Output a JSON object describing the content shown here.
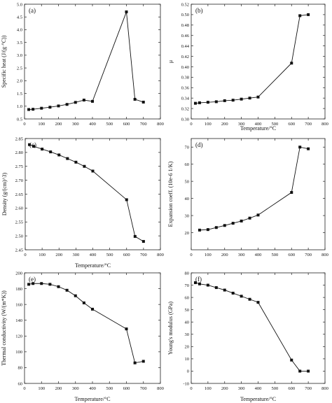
{
  "chart_data": [
    {
      "type": "line",
      "panel_label": "(a)",
      "xlabel": "",
      "ylabel": "Specific heat (J/(g·°C))",
      "xlim": [
        0,
        800
      ],
      "ylim": [
        0.5,
        5.0
      ],
      "xticks": [
        "0",
        "100",
        "200",
        "300",
        "400",
        "500",
        "600",
        "700",
        "800"
      ],
      "yticks": [
        "0.5",
        "1.0",
        "1.5",
        "2.0",
        "2.5",
        "3.0",
        "3.5",
        "4.0",
        "4.5",
        "5.0"
      ],
      "series": [
        {
          "x": [
            25,
            50,
            100,
            150,
            200,
            250,
            300,
            350,
            400,
            600,
            650,
            700
          ],
          "y": [
            0.87,
            0.88,
            0.92,
            0.96,
            1.01,
            1.07,
            1.15,
            1.24,
            1.19,
            4.7,
            1.27,
            1.16
          ]
        }
      ]
    },
    {
      "type": "line",
      "panel_label": "(b)",
      "xlabel": "Temperature/°C",
      "ylabel": "μ",
      "xlim": [
        0,
        800
      ],
      "ylim": [
        0.3,
        0.52
      ],
      "xticks": [
        "0",
        "100",
        "200",
        "300",
        "400",
        "500",
        "600",
        "700",
        "800"
      ],
      "yticks": [
        "0.30",
        "0.32",
        "0.34",
        "0.36",
        "0.38",
        "0.40",
        "0.42",
        "0.44",
        "0.46",
        "0.48",
        "0.50",
        "0.52"
      ],
      "series": [
        {
          "x": [
            25,
            50,
            100,
            150,
            200,
            250,
            300,
            350,
            400,
            600,
            650,
            700
          ],
          "y": [
            0.33,
            0.331,
            0.332,
            0.333,
            0.335,
            0.336,
            0.338,
            0.34,
            0.342,
            0.407,
            0.498,
            0.5
          ]
        }
      ]
    },
    {
      "type": "line",
      "panel_label": "(c)",
      "xlabel": "Temperature/°C",
      "ylabel": "Density (g/(cm)^3)",
      "xlim": [
        0,
        800
      ],
      "ylim": [
        2.45,
        2.85
      ],
      "xticks": [
        "0",
        "100",
        "200",
        "300",
        "400",
        "500",
        "600",
        "700",
        "800"
      ],
      "yticks": [
        "2.45",
        "2.50",
        "2.55",
        "2.60",
        "2.65",
        "2.70",
        "2.75",
        "2.80",
        "2.85"
      ],
      "series": [
        {
          "x": [
            25,
            50,
            100,
            150,
            200,
            250,
            300,
            350,
            400,
            600,
            650,
            700
          ],
          "y": [
            2.828,
            2.822,
            2.812,
            2.802,
            2.791,
            2.778,
            2.765,
            2.75,
            2.733,
            2.63,
            2.498,
            2.48
          ]
        }
      ]
    },
    {
      "type": "line",
      "panel_label": "(d)",
      "xlabel": "",
      "ylabel": "Expansion coeff. (10e-6 1/K)",
      "xlim": [
        0,
        800
      ],
      "ylim": [
        10,
        75
      ],
      "xticks": [
        "0",
        "100",
        "200",
        "300",
        "400",
        "500",
        "600",
        "700",
        "800"
      ],
      "yticks": [
        "20",
        "30",
        "40",
        "50",
        "60",
        "70"
      ],
      "series": [
        {
          "x": [
            50,
            100,
            150,
            200,
            250,
            300,
            350,
            400,
            600,
            650,
            700
          ],
          "y": [
            21.5,
            21.8,
            23.0,
            24.2,
            25.5,
            26.8,
            28.5,
            30.3,
            43.5,
            70.0,
            69.0
          ]
        }
      ]
    },
    {
      "type": "line",
      "panel_label": "(e)",
      "xlabel": "Temperature/°C",
      "ylabel": "Thermal conductivity (W/(m*K))",
      "xlim": [
        0,
        800
      ],
      "ylim": [
        60,
        200
      ],
      "xticks": [
        "0",
        "100",
        "200",
        "300",
        "400",
        "500",
        "600",
        "700",
        "800"
      ],
      "yticks": [
        "60",
        "80",
        "100",
        "120",
        "140",
        "160",
        "180",
        "200"
      ],
      "series": [
        {
          "x": [
            25,
            50,
            100,
            150,
            200,
            250,
            300,
            350,
            400,
            600,
            650,
            700
          ],
          "y": [
            185.5,
            186.5,
            186.5,
            185.5,
            182.5,
            178,
            171,
            162,
            154,
            129,
            86,
            88
          ]
        }
      ]
    },
    {
      "type": "line",
      "panel_label": "(f)",
      "xlabel": "Temperature/°C",
      "ylabel": "Young's modulus (GPa)",
      "xlim": [
        0,
        800
      ],
      "ylim": [
        -10,
        80
      ],
      "xticks": [
        "0",
        "100",
        "200",
        "300",
        "400",
        "500",
        "600",
        "700",
        "800"
      ],
      "yticks": [
        "-10",
        "0",
        "10",
        "20",
        "30",
        "40",
        "50",
        "60",
        "70",
        "80"
      ],
      "series": [
        {
          "x": [
            25,
            50,
            100,
            150,
            200,
            250,
            300,
            350,
            400,
            600,
            650,
            700
          ],
          "y": [
            72,
            71,
            70,
            68,
            66,
            63.5,
            61,
            58.5,
            56,
            9,
            0,
            0
          ]
        }
      ]
    }
  ]
}
